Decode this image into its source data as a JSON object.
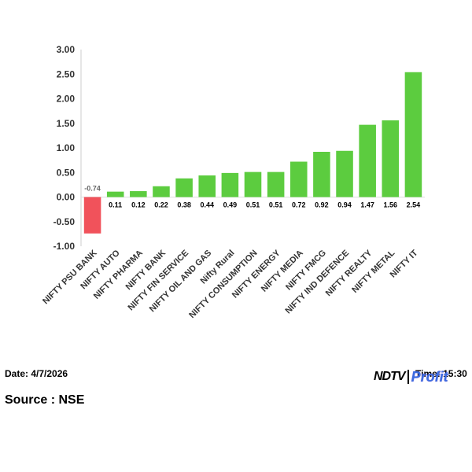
{
  "chart_data": {
    "type": "bar",
    "categories": [
      "NIFTY PSU BANK",
      "NIFTY AUTO",
      "NIFTY PHARMA",
      "NIFTY BANK",
      "NIFTY FIN SERVICE",
      "NIFTY OIL AND GAS",
      "Nifty Rural",
      "NIFTY CONSUMPTION",
      "NIFTY ENERGY",
      "NIFTY MEDIA",
      "NIFTY FMCG",
      "NIFTY IND DEFENCE",
      "NIFTY REALTY",
      "NIFTY METAL",
      "NIFTY IT"
    ],
    "values": [
      -0.74,
      0.11,
      0.12,
      0.22,
      0.38,
      0.44,
      0.49,
      0.51,
      0.51,
      0.72,
      0.92,
      0.94,
      1.47,
      1.56,
      2.54
    ],
    "value_labels": [
      "-0.74",
      "0.11",
      "0.12",
      "0.22",
      "0.38",
      "0.44",
      "0.49",
      "0.51",
      "0.51",
      "0.72",
      "0.92",
      "0.94",
      "1.47",
      "1.56",
      "2.54"
    ],
    "y_ticks": [
      "3.00",
      "2.50",
      "2.00",
      "1.50",
      "1.00",
      "0.50",
      "0.00",
      "-0.50",
      "-1.00"
    ],
    "ylim": [
      -1.0,
      3.0
    ],
    "grid": false,
    "colors": {
      "positive": "#5ccc3f",
      "negative": "#f1525b"
    }
  },
  "footer": {
    "date": "Date: 4/7/2026",
    "time": "Time: 15:30",
    "source": "Source : NSE"
  },
  "logo": {
    "ndtv": "NDTV",
    "profit": "Profit"
  }
}
